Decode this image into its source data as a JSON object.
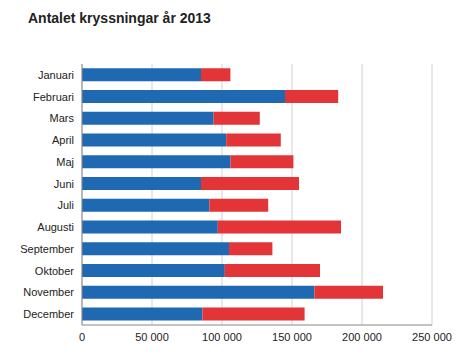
{
  "chart_data": {
    "type": "bar",
    "title": "Antalet kryssningar år 2013",
    "orientation": "horizontal",
    "stacked": true,
    "grid": true,
    "categories": [
      "Januari",
      "Februari",
      "Mars",
      "April",
      "Maj",
      "Juni",
      "Juli",
      "Augusti",
      "September",
      "Oktober",
      "November",
      "December"
    ],
    "series": [
      {
        "color": "#1f68b2",
        "values": [
          85000,
          145000,
          94000,
          103000,
          106000,
          85000,
          91000,
          97000,
          105000,
          102000,
          166000,
          86000
        ]
      },
      {
        "color": "#e33437",
        "values": [
          21000,
          38000,
          33000,
          39000,
          45000,
          70000,
          42000,
          88000,
          31000,
          68000,
          49000,
          73000
        ]
      }
    ],
    "xlim": [
      0,
      250000
    ],
    "xticks": [
      0,
      {
        "value": 50000,
        "label": "50 000"
      },
      {
        "value": 100000,
        "label": "100 000"
      },
      {
        "value": 150000,
        "label": "150 000"
      },
      {
        "value": 200000,
        "label": "200 000"
      },
      {
        "value": 250000,
        "label": "250 000"
      }
    ]
  }
}
